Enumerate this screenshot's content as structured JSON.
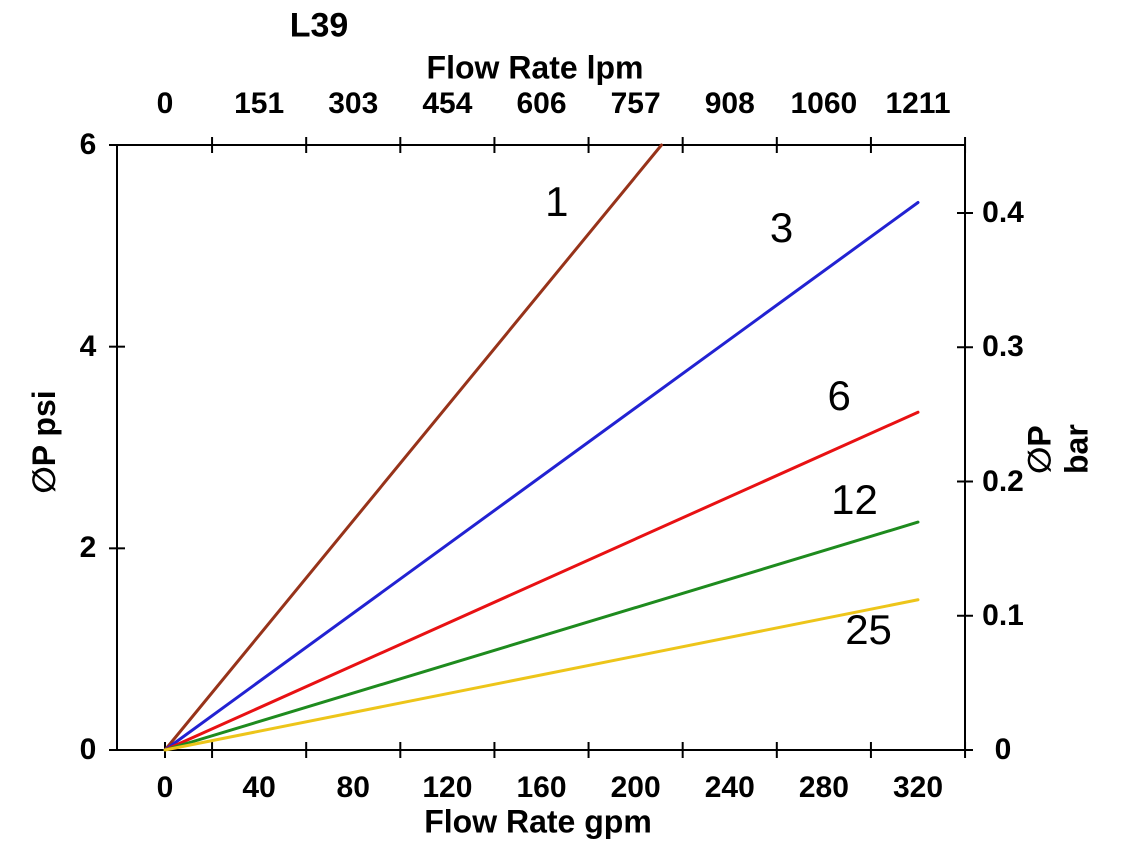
{
  "chart_data": {
    "type": "line",
    "title": "L39",
    "grid": false,
    "legend": "inline-labels-on-lines",
    "top_axis": {
      "label": "Flow Rate lpm",
      "tick_labels": [
        "0",
        "151",
        "303",
        "454",
        "606",
        "757",
        "908",
        "1060",
        "1211"
      ],
      "tick_label_positions_gpm": [
        0,
        40,
        80,
        120,
        160,
        200,
        240,
        280,
        320
      ],
      "tick_mark_positions_gpm": [
        20,
        60,
        100,
        140,
        180,
        220,
        260,
        300,
        340
      ]
    },
    "bottom_axis": {
      "label": "Flow Rate gpm",
      "tick_labels": [
        "0",
        "40",
        "80",
        "120",
        "160",
        "200",
        "240",
        "280",
        "320"
      ],
      "tick_label_positions_gpm": [
        0,
        40,
        80,
        120,
        160,
        200,
        240,
        280,
        320
      ],
      "tick_mark_positions_gpm": [
        0,
        20,
        60,
        100,
        140,
        180,
        220,
        260,
        300,
        340
      ],
      "range_gpm": [
        -20.4,
        340
      ]
    },
    "left_axis": {
      "label": "∅P psi",
      "tick_labels": [
        "0",
        "2",
        "4",
        "6"
      ],
      "tick_values_psi": [
        0,
        2,
        4,
        6
      ],
      "range_psi": [
        0,
        6
      ]
    },
    "right_axis": {
      "label": "∅P bar",
      "tick_labels": [
        "0",
        "0.1",
        "0.2",
        "0.3",
        "0.4"
      ],
      "tick_values_bar": [
        0,
        0.1,
        0.2,
        0.3,
        0.4
      ],
      "bar_value_at_axis_top": 0.45
    },
    "series": [
      {
        "label": "1",
        "color": "#97331a",
        "points_gpm_psi": [
          [
            0,
            0
          ],
          [
            211,
            6.0
          ]
        ],
        "label_pos_gpm_psi": [
          166.5,
          5.43
        ]
      },
      {
        "label": "3",
        "color": "#2222d2",
        "points_gpm_psi": [
          [
            0,
            0
          ],
          [
            320,
            5.43
          ]
        ],
        "label_pos_gpm_psi": [
          262,
          5.18
        ]
      },
      {
        "label": "6",
        "color": "#e81113",
        "points_gpm_psi": [
          [
            0,
            0
          ],
          [
            320,
            3.35
          ]
        ],
        "label_pos_gpm_psi": [
          286.5,
          3.51
        ]
      },
      {
        "label": "12",
        "color": "#1e8b1e",
        "points_gpm_psi": [
          [
            0,
            0
          ],
          [
            320,
            2.26
          ]
        ],
        "label_pos_gpm_psi": [
          293,
          2.48
        ]
      },
      {
        "label": "25",
        "color": "#edc51a",
        "points_gpm_psi": [
          [
            0,
            0
          ],
          [
            320,
            1.49
          ]
        ],
        "label_pos_gpm_psi": [
          299,
          1.19
        ]
      }
    ],
    "frame_color": "#000000"
  }
}
